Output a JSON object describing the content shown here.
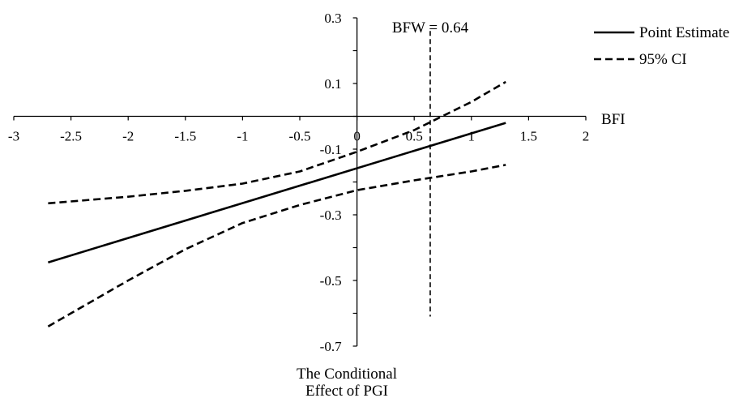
{
  "chart_data": {
    "type": "line",
    "title": "",
    "xlabel": "BFI",
    "ylabel": [
      "The Conditional",
      "Effect of PGI"
    ],
    "xlim": [
      -3,
      2
    ],
    "ylim": [
      -0.7,
      0.3
    ],
    "x_ticks": [
      -3,
      -2.5,
      -2,
      -1.5,
      -1,
      -0.5,
      0,
      0.5,
      1,
      1.5,
      2
    ],
    "x_tick_labels": [
      "-3",
      "-2.5",
      "-2",
      "-1.5",
      "-1",
      "-0.5",
      "0",
      "0.5",
      "1",
      "1.5",
      "2"
    ],
    "y_tick_labels_shown": [
      {
        "value": 0.3,
        "label": "0.3"
      },
      {
        "value": 0.1,
        "label": "0.1"
      },
      {
        "value": -0.1,
        "label": "-0.1"
      },
      {
        "value": -0.3,
        "label": "-0.3"
      },
      {
        "value": -0.5,
        "label": "-0.5"
      },
      {
        "value": -0.7,
        "label": "-0.7"
      }
    ],
    "grid": false,
    "legend_position": "top-right",
    "series": [
      {
        "name": "Point Estimate",
        "style": "solid",
        "color": "#000000",
        "x": [
          -2.7,
          1.3
        ],
        "y": [
          -0.445,
          -0.02
        ]
      },
      {
        "name": "95% CI",
        "style": "dashed",
        "color": "#000000",
        "x": [
          -2.7,
          -2.0,
          -1.5,
          -1.0,
          -0.5,
          0.0,
          0.5,
          1.0,
          1.3
        ],
        "y": [
          -0.265,
          -0.245,
          -0.227,
          -0.205,
          -0.168,
          -0.108,
          -0.042,
          0.044,
          0.105
        ]
      },
      {
        "name": "",
        "style": "dashed",
        "color": "#000000",
        "x": [
          -2.7,
          -2.0,
          -1.5,
          -1.0,
          -0.5,
          0.0,
          0.5,
          1.0,
          1.3
        ],
        "y": [
          -0.64,
          -0.5,
          -0.405,
          -0.325,
          -0.27,
          -0.225,
          -0.195,
          -0.168,
          -0.148
        ]
      }
    ],
    "reference_line": {
      "label": "BFW = 0.64",
      "x": 0.64,
      "y_range": [
        -0.61,
        0.26
      ],
      "style": "dashed"
    }
  }
}
